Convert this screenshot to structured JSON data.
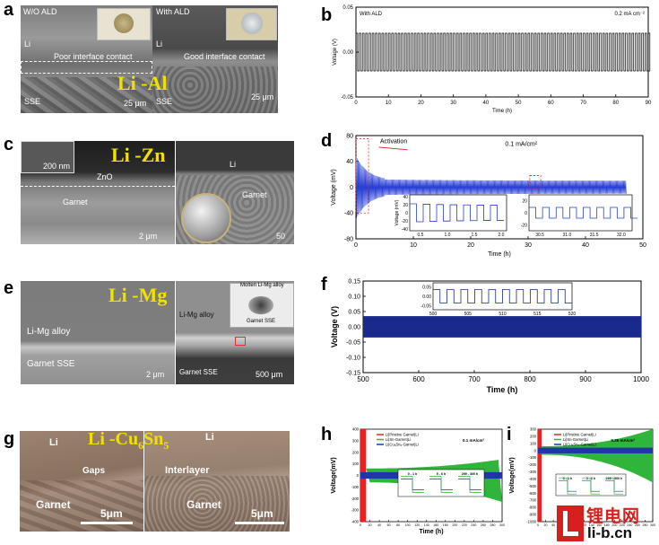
{
  "panels": {
    "a": {
      "label": "a",
      "material": "Li -Al",
      "left_title": "W/O ALD",
      "right_title": "With ALD",
      "left_caption": "Poor interface contact",
      "right_caption": "Good interface contact",
      "li": "Li",
      "sse": "SSE",
      "scale_left": "25 μm",
      "scale_right": "25 μm"
    },
    "b": {
      "label": "b",
      "chart_data": {
        "type": "line",
        "title": "",
        "annotation_left": "With ALD",
        "annotation_right": "0.2 mA cm⁻²",
        "xlabel": "Time (h)",
        "ylabel": "Voltage (V)",
        "xlim": [
          0,
          90
        ],
        "ylim": [
          -0.05,
          0.05
        ],
        "xticks": [
          "0",
          "10",
          "20",
          "30",
          "40",
          "50",
          "60",
          "70",
          "80",
          "90"
        ],
        "yticks": [
          "0.05",
          "0.00",
          "-0.05"
        ],
        "amplitude": 0.021,
        "color": "#000000"
      }
    },
    "c": {
      "label": "c",
      "material": "Li -Zn",
      "inset_scale": "200 nm",
      "zno": "ZnO",
      "garnet_left": "Garnet",
      "li": "Li",
      "garnet_right": "Garnet",
      "scale_left": "2 μm",
      "scale_right": "50"
    },
    "d": {
      "label": "d",
      "chart_data": {
        "type": "line",
        "activation": "Activation",
        "annotation": "0.1 mA/cm²",
        "xlabel": "Time (h)",
        "ylabel": "Voltage (mV)",
        "xlim": [
          0,
          50
        ],
        "ylim": [
          -80,
          80
        ],
        "xticks": [
          "0",
          "10",
          "20",
          "30",
          "40",
          "50"
        ],
        "yticks": [
          "80",
          "40",
          "0",
          "-40",
          "-80"
        ],
        "color": "#2a3fd6",
        "inset1": {
          "xticks": [
            "0.5",
            "1.0",
            "1.5",
            "2.0"
          ],
          "yticks": [
            "40",
            "20",
            "0",
            "-20",
            "-40"
          ],
          "ylabel": "Voltage (mV)"
        },
        "inset2": {
          "xticks": [
            "30.5",
            "31.0",
            "31.5",
            "32.0"
          ],
          "yticks": [
            "20",
            "0",
            "-20"
          ]
        }
      }
    },
    "e": {
      "label": "e",
      "material": "Li -Mg",
      "alloy_left": "Li-Mg alloy",
      "garnet_left": "Garnet SSE",
      "scale_left": "2 μm",
      "inset_top": "Molten Li-Mg alloy",
      "inset_bottom": "Garnet SSE",
      "alloy_right": "Li-Mg alloy",
      "garnet_right": "Garnet SSE",
      "scale_right": "500 μm"
    },
    "f": {
      "label": "f",
      "chart_data": {
        "type": "line",
        "xlabel": "Time (h)",
        "ylabel": "Voltage (V)",
        "xlim": [
          500,
          1000
        ],
        "ylim": [
          -0.15,
          0.15
        ],
        "xticks": [
          "500",
          "600",
          "700",
          "800",
          "900",
          "1000"
        ],
        "yticks": [
          "0.15",
          "0.10",
          "0.05",
          "0.00",
          "-0.05",
          "-0.10",
          "-0.15"
        ],
        "band": 0.035,
        "color": "#1a2a8c",
        "inset": {
          "xticks": [
            "500",
            "505",
            "510",
            "515",
            "520"
          ],
          "yticks": [
            "0.05",
            "0.00",
            "-0.05"
          ]
        }
      }
    },
    "g": {
      "label": "g",
      "material_prefix": "Li -Cu",
      "sub6": "6",
      "mid": "Sn",
      "sub5": "5",
      "li_left": "Li",
      "gaps": "Gaps",
      "garnet_left": "Garnet",
      "scale_left": "5μm",
      "li_right": "Li",
      "interlayer": "Interlayer",
      "garnet_right": "Garnet",
      "scale_right": "5μm"
    },
    "h": {
      "label": "h",
      "chart_data": {
        "type": "line",
        "xlabel": "Time (h)",
        "ylabel": "Voltage(mV)",
        "xlim": [
          0,
          300
        ],
        "ylim": [
          -400,
          400
        ],
        "xticks": [
          "0",
          "20",
          "40",
          "60",
          "80",
          "100",
          "120",
          "140",
          "160",
          "180",
          "200",
          "220",
          "240",
          "260",
          "280",
          "300"
        ],
        "yticks": [
          "400",
          "300",
          "200",
          "100",
          "0",
          "-100",
          "-200",
          "-300",
          "-400"
        ],
        "annotation": "0.1 mA/cm²",
        "series": [
          {
            "name": "Li|Pristine Garnet|Li",
            "color": "#e8231f"
          },
          {
            "name": "Li|Sn-Garnet|Li",
            "color": "#2fb53a"
          },
          {
            "name": "Li|Cu₆Sn₅-Garnet|Li",
            "color": "#2035a8"
          }
        ],
        "inset_labels": [
          "0 - 1 h",
          "5 - 6 h",
          "299 - 300 h"
        ]
      }
    },
    "i": {
      "label": "i",
      "chart_data": {
        "type": "line",
        "ylabel": "Voltage(mV)",
        "xlim": [
          0,
          300
        ],
        "ylim": [
          -1000,
          300
        ],
        "xticks": [
          "0",
          "20",
          "40",
          "60",
          "80",
          "100",
          "120",
          "140",
          "160",
          "180",
          "200",
          "220",
          "240",
          "260",
          "280",
          "300"
        ],
        "yticks": [
          "300",
          "200",
          "100",
          "0",
          "-100",
          "-200",
          "-300",
          "-400",
          "-500",
          "-600",
          "-700",
          "-800",
          "-900",
          "-1000"
        ],
        "annotation": "0.25 mA/cm²",
        "series": [
          {
            "name": "Li|Pristine Garnet|Li",
            "color": "#e8231f"
          },
          {
            "name": "Li|Sn-Garnet|Li",
            "color": "#2fb53a"
          },
          {
            "name": "Li|Cu₆Sn₅-Garnet|Li",
            "color": "#2035a8"
          }
        ],
        "inset_labels": [
          "0 - 1 h",
          "5 - 6 h",
          "299 - 300 h"
        ]
      }
    }
  },
  "watermark": {
    "brand": "锂电网",
    "url": "li-b.cn"
  }
}
